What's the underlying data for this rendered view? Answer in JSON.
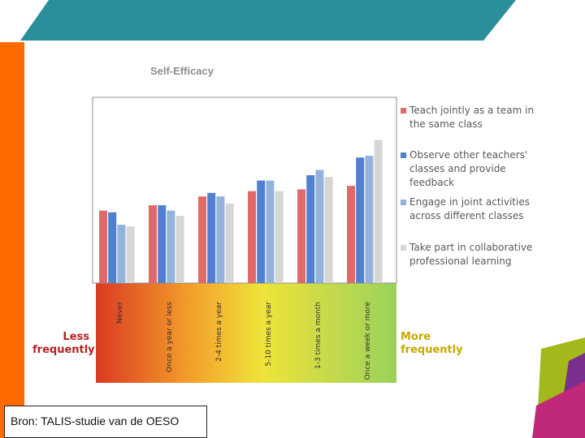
{
  "colors": {
    "header_teal": "#2a8e9b",
    "orange_strip": "#ff6a00",
    "page_bg": "#ffffff",
    "side_label": "#b22222",
    "more_label": "#c8a800"
  },
  "chart_data": {
    "type": "bar",
    "title": "Self-Efficacy",
    "categories": [
      "Never",
      "Once a year or less",
      "2-4 times a year",
      "5-10 times a year",
      "1-3 times a month",
      "Once a week or more"
    ],
    "ylim": [
      0,
      100
    ],
    "grid": false,
    "legend_position": "right",
    "series": [
      {
        "name": "Teach jointly as a team in the same class",
        "color": "#e06a6a",
        "values": [
          41,
          44,
          49,
          52,
          53,
          55
        ]
      },
      {
        "name": "Observe other teachers' classes and provide feedback",
        "color": "#4f81d0",
        "values": [
          40,
          44,
          51,
          58,
          61,
          71
        ]
      },
      {
        "name": "Engage in joint activities across different classes",
        "color": "#94b3dc",
        "values": [
          33,
          41,
          49,
          58,
          64,
          72
        ]
      },
      {
        "name": "Take part in collaborative professional learning",
        "color": "#d6d6d6",
        "values": [
          32,
          38,
          45,
          52,
          60,
          81
        ]
      }
    ]
  },
  "axis_bottom": {
    "less_label": "Less frequently",
    "more_label": "More frequently"
  },
  "source": {
    "text": "Bron: TALIS-studie van de OESO"
  }
}
